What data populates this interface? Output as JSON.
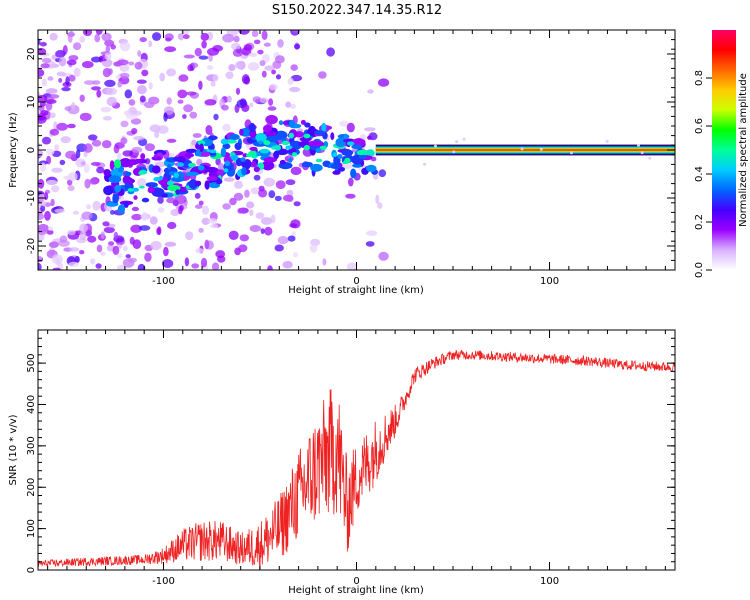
{
  "title": "S150.2022.347.14.35.R12",
  "chart_data": [
    {
      "type": "heatmap",
      "xlabel": "Height of straight line (km)",
      "ylabel": "Frequency (Hz)",
      "xlim": [
        -165,
        165
      ],
      "ylim": [
        -25,
        25
      ],
      "xticks": [
        -100,
        0,
        100
      ],
      "xtick_labels": [
        "-100",
        "0",
        "100"
      ],
      "yticks": [
        -20,
        -10,
        0,
        10,
        20
      ],
      "ytick_labels": [
        "-20",
        "-10",
        "0",
        "10",
        "20"
      ],
      "colorbar": {
        "label": "Normalized spectral amplitude",
        "range": [
          0,
          1
        ],
        "ticks": [
          0.0,
          0.2,
          0.4,
          0.6,
          0.8
        ],
        "tick_labels": [
          "0.0",
          "0.2",
          "0.4",
          "0.6",
          "0.8"
        ],
        "colormap": [
          "#ffffff",
          "#d9b3ff",
          "#9900ff",
          "#4400ff",
          "#0066ff",
          "#00ccff",
          "#00ff99",
          "#00ff00",
          "#ccff00",
          "#ffcc00",
          "#ff6600",
          "#ff0000",
          "#ff0066"
        ]
      },
      "ridge": {
        "description_points": [
          {
            "x": -125,
            "y": -8,
            "amp": 0.3
          },
          {
            "x": -100,
            "y": -5,
            "amp": 0.3
          },
          {
            "x": -80,
            "y": -3,
            "amp": 0.35
          },
          {
            "x": -60,
            "y": -1,
            "amp": 0.3
          },
          {
            "x": -40,
            "y": 2,
            "amp": 0.3
          },
          {
            "x": -20,
            "y": 0,
            "amp": 0.35
          },
          {
            "x": -10,
            "y": 0,
            "amp": 0.5
          },
          {
            "x": 0,
            "y": -1,
            "amp": 0.6
          },
          {
            "x": 10,
            "y": 0,
            "amp": 0.8
          },
          {
            "x": 165,
            "y": 0,
            "amp": 0.85
          }
        ]
      }
    },
    {
      "type": "line",
      "xlabel": "Height of straight line (km)",
      "ylabel": "SNR (10 * v/v)",
      "xlim": [
        -165,
        165
      ],
      "ylim": [
        0,
        580
      ],
      "xticks": [
        -100,
        0,
        100
      ],
      "xtick_labels": [
        "-100",
        "0",
        "100"
      ],
      "yticks": [
        0,
        100,
        200,
        300,
        400,
        500
      ],
      "ytick_labels": [
        "0",
        "100",
        "200",
        "300",
        "400",
        "500"
      ],
      "color": "#ee2222",
      "series": [
        {
          "name": "SNR",
          "x": [
            -165,
            -140,
            -110,
            -100,
            -90,
            -80,
            -70,
            -60,
            -50,
            -40,
            -30,
            -20,
            -10,
            -5,
            0,
            10,
            20,
            25,
            30,
            40,
            50,
            60,
            80,
            100,
            120,
            140,
            165
          ],
          "y": [
            15,
            20,
            25,
            35,
            60,
            70,
            70,
            50,
            60,
            100,
            180,
            250,
            300,
            150,
            220,
            290,
            360,
            410,
            470,
            500,
            520,
            520,
            515,
            510,
            505,
            495,
            490
          ],
          "noise_amplitude": [
            8,
            10,
            12,
            20,
            40,
            50,
            50,
            40,
            60,
            80,
            110,
            140,
            170,
            120,
            90,
            80,
            40,
            25,
            20,
            15,
            12,
            12,
            12,
            12,
            12,
            12,
            12
          ]
        }
      ]
    }
  ]
}
